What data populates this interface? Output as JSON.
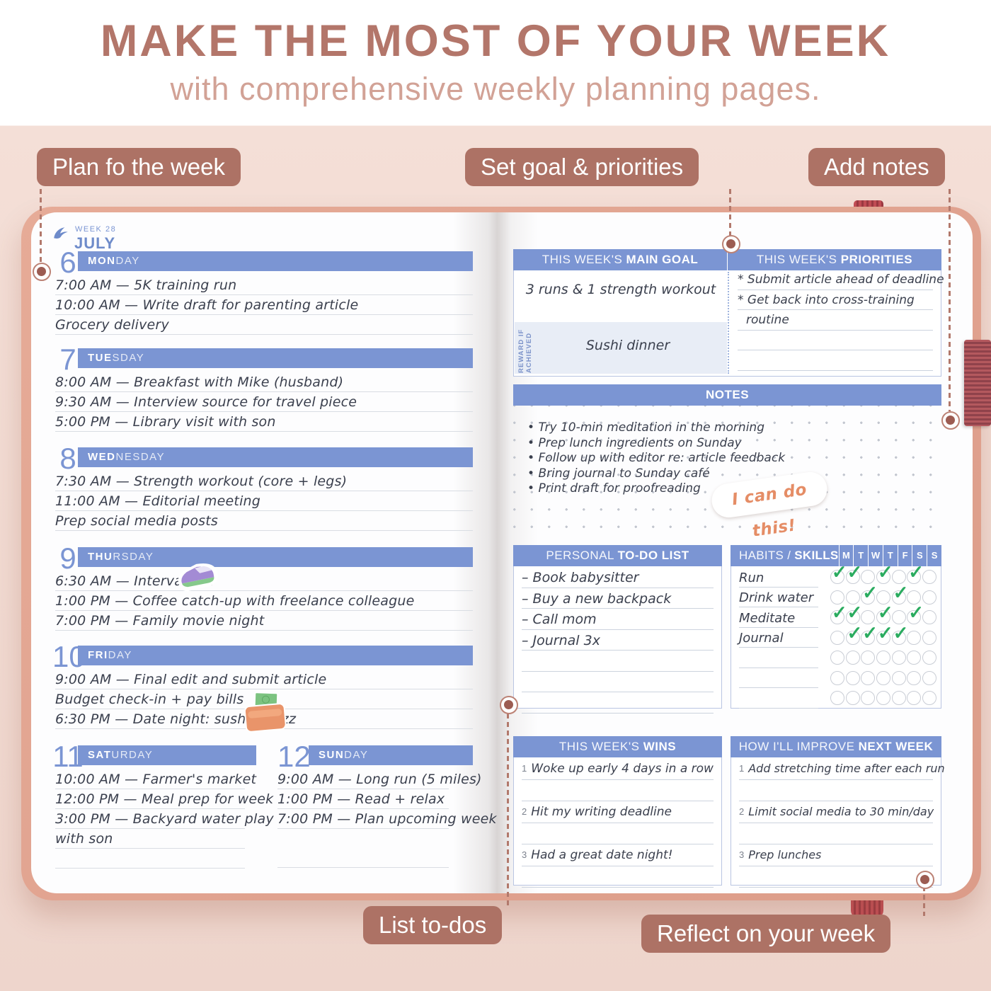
{
  "header": {
    "title": "MAKE THE MOST OF YOUR WEEK",
    "subtitle": "with comprehensive weekly planning pages."
  },
  "callouts": {
    "plan": "Plan fo the week",
    "goals": "Set goal & priorities",
    "notes": "Add notes",
    "todos": "List to-dos",
    "reflect": "Reflect on your week"
  },
  "brand": {
    "week_label": "WEEK 28",
    "month": "JULY",
    "logo_icon": "bird-icon"
  },
  "left_page": {
    "days": [
      {
        "num": "6",
        "name_bold": "MON",
        "name_rest": "DAY",
        "entries": [
          "7:00 AM — 5K training run",
          "10:00 AM — Write draft for parenting article",
          "Grocery delivery"
        ]
      },
      {
        "num": "7",
        "name_bold": "TUE",
        "name_rest": "SDAY",
        "entries": [
          "8:00 AM — Breakfast with Mike (husband)",
          "9:30 AM — Interview source for travel piece",
          "5:00 PM — Library visit with son"
        ]
      },
      {
        "num": "8",
        "name_bold": "WED",
        "name_rest": "NESDAY",
        "entries": [
          "7:30 AM — Strength workout (core + legs)",
          "11:00 AM — Editorial meeting",
          "Prep social media posts"
        ]
      },
      {
        "num": "9",
        "name_bold": "THU",
        "name_rest": "RSDAY",
        "entries": [
          "6:30 AM — Interval run",
          "1:00 PM — Coffee catch-up with freelance colleague",
          "7:00 PM — Family movie night"
        ]
      },
      {
        "num": "10",
        "name_bold": "FRI",
        "name_rest": "DAY",
        "entries": [
          "9:00 AM — Final edit and submit article",
          "Budget check-in + pay bills",
          "6:30 PM — Date night: sushi & jazz"
        ]
      },
      {
        "num": "11",
        "name_bold": "SAT",
        "name_rest": "URDAY",
        "entries": [
          "10:00 AM — Farmer's market",
          "12:00 PM — Meal prep for week",
          "3:00 PM — Backyard water play",
          "with son"
        ]
      },
      {
        "num": "12",
        "name_bold": "SUN",
        "name_rest": "DAY",
        "entries": [
          "9:00 AM — Long run (5 miles)",
          "1:00 PM — Read + relax",
          "7:00 PM — Plan upcoming week"
        ]
      }
    ],
    "stickers": [
      "running-shoe-sticker",
      "wallet-money-sticker"
    ]
  },
  "right_page": {
    "main_goal": {
      "header_light": "THIS WEEK'S ",
      "header_bold": "MAIN GOAL",
      "value": "3 runs & 1 strength workout",
      "reward_label_line1": "REWARD IF",
      "reward_label_line2": "ACHIEVED",
      "reward_value": "Sushi dinner"
    },
    "priorities": {
      "header_light": "THIS WEEK'S ",
      "header_bold": "PRIORITIES",
      "lines": [
        "* Submit article ahead of deadline",
        "* Get back into cross-training",
        "routine"
      ]
    },
    "notes": {
      "header": "NOTES",
      "items": [
        "Try 10-min meditation in the morning",
        "Prep lunch ingredients on Sunday",
        "Follow up with editor re: article feedback",
        "Bring journal to Sunday café",
        "Print draft for proofreading"
      ],
      "sticker": "I can do this!"
    },
    "todo": {
      "header_light": "PERSONAL ",
      "header_bold": "TO-DO LIST",
      "items": [
        "– Book babysitter",
        "– Buy a new backpack",
        "– Call mom",
        "– Journal 3x"
      ]
    },
    "habits": {
      "header_light": "HABITS / ",
      "header_bold": "SKILLS",
      "day_letters": [
        "M",
        "T",
        "W",
        "T",
        "F",
        "S",
        "S"
      ],
      "rows": [
        {
          "label": "Run",
          "checks": [
            1,
            1,
            0,
            1,
            0,
            1,
            0
          ]
        },
        {
          "label": "Drink water",
          "checks": [
            0,
            0,
            1,
            0,
            1,
            0,
            0
          ]
        },
        {
          "label": "Meditate",
          "checks": [
            1,
            1,
            0,
            1,
            0,
            1,
            0
          ]
        },
        {
          "label": "Journal",
          "checks": [
            0,
            1,
            1,
            1,
            1,
            0,
            0
          ]
        },
        {
          "label": "",
          "checks": [
            0,
            0,
            0,
            0,
            0,
            0,
            0
          ]
        },
        {
          "label": "",
          "checks": [
            0,
            0,
            0,
            0,
            0,
            0,
            0
          ]
        },
        {
          "label": "",
          "checks": [
            0,
            0,
            0,
            0,
            0,
            0,
            0
          ]
        }
      ]
    },
    "wins": {
      "header_light": "THIS WEEK'S ",
      "header_bold": "WINS",
      "items": [
        {
          "n": "1",
          "text": "Woke up early 4 days in a row"
        },
        {
          "n": "2",
          "text": "Hit my writing deadline"
        },
        {
          "n": "3",
          "text": "Had a great date night!"
        }
      ]
    },
    "improve": {
      "header_light": "HOW I'LL IMPROVE ",
      "header_bold": "NEXT WEEK",
      "items": [
        {
          "n": "1",
          "text": "Add stretching time after each run"
        },
        {
          "n": "2",
          "text": "Limit social media to 30 min/day"
        },
        {
          "n": "3",
          "text": "Prep lunches"
        }
      ]
    }
  },
  "colors": {
    "accent_blue": "#7b95d3",
    "badge_brown": "#ad7265",
    "headline_rose": "#b3766a",
    "cover_salmon": "#dfa28f",
    "check_green": "#2aab5f",
    "elastic_red": "#a84a52"
  }
}
